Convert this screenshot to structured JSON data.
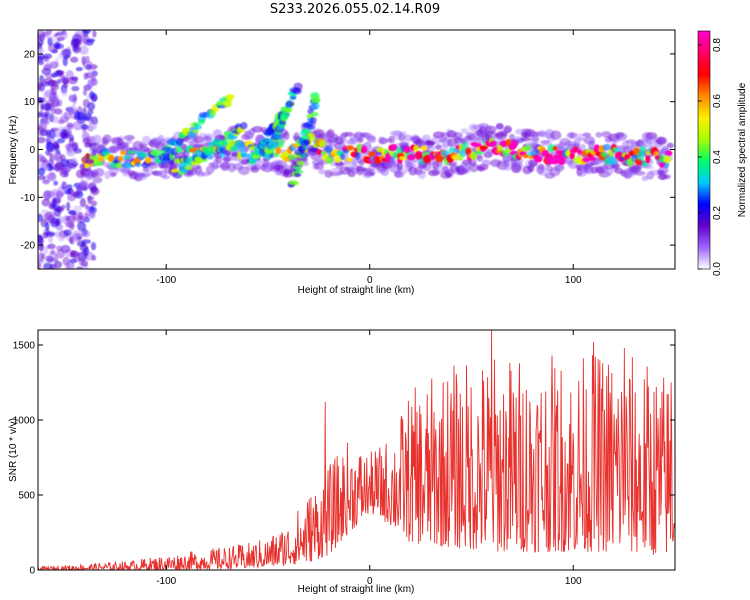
{
  "page": {
    "title": "S233.2026.055.02.14.R09"
  },
  "colors": {
    "snr_line": "#e8302c",
    "frame": "#000000"
  },
  "chart_data": [
    {
      "type": "heatmap",
      "xlabel": "Height of straight line (km)",
      "ylabel": "Frequency (Hz)",
      "xlim": [
        -163,
        150
      ],
      "ylim": [
        -25,
        25
      ],
      "xticks": [
        -100,
        0,
        100
      ],
      "yticks": [
        -20,
        -10,
        0,
        10,
        20
      ],
      "grid": false,
      "colorbar": {
        "label": "Normalized spectral amplitude",
        "range": [
          0,
          0.85
        ],
        "ticks": [
          0.0,
          0.2,
          0.4,
          0.6,
          0.8
        ],
        "colormap": [
          "#ffffff",
          "#9966ff",
          "#6600cc",
          "#0000ff",
          "#00ccff",
          "#00ff66",
          "#aaff00",
          "#ffee00",
          "#ff8800",
          "#ff0000",
          "#ff0066",
          "#ff00cc"
        ]
      },
      "features": [
        {
          "name": "ridge",
          "x": [
            -140,
            -120,
            -100,
            -85,
            -70,
            -55,
            -45,
            -38,
            -30,
            -20,
            0,
            20,
            40,
            60,
            80,
            100,
            120,
            148
          ],
          "y": [
            -2,
            -2,
            -1.5,
            -1,
            0,
            0,
            0,
            -1,
            2,
            -1,
            -1,
            -1,
            -1,
            1,
            -1,
            -1,
            -1,
            -2
          ],
          "amplitude": 0.5
        },
        {
          "name": "streak",
          "x": [
            -102,
            -68
          ],
          "y": [
            -1,
            11
          ],
          "amplitude": 0.35
        },
        {
          "name": "streak",
          "x": [
            -95,
            -62
          ],
          "y": [
            -5,
            5
          ],
          "amplitude": 0.35
        },
        {
          "name": "streak",
          "x": [
            -58,
            -42
          ],
          "y": [
            -3,
            8
          ],
          "amplitude": 0.3
        },
        {
          "name": "streak",
          "x": [
            -50,
            -36
          ],
          "y": [
            -1,
            13
          ],
          "amplitude": 0.3
        },
        {
          "name": "streak",
          "x": [
            -38,
            -26
          ],
          "y": [
            -8,
            11
          ],
          "amplitude": 0.3
        },
        {
          "name": "noise_column",
          "x": [
            -163,
            -135
          ],
          "y": [
            -25,
            25
          ],
          "amplitude": 0.15
        }
      ]
    },
    {
      "type": "line",
      "xlabel": "Height of straight line (km)",
      "ylabel": "SNR (10 * v/v)",
      "xlim": [
        -163,
        150
      ],
      "ylim": [
        0,
        1600
      ],
      "xticks": [
        -100,
        0,
        100
      ],
      "yticks": [
        0,
        500,
        1000,
        1500
      ],
      "grid": false,
      "envelope": {
        "x": [
          -163,
          -140,
          -120,
          -100,
          -80,
          -60,
          -50,
          -40,
          -30,
          -20,
          -10,
          0,
          10,
          20,
          40,
          60,
          80,
          100,
          120,
          140,
          150
        ],
        "low": [
          0,
          0,
          0,
          0,
          5,
          10,
          20,
          30,
          50,
          100,
          250,
          380,
          300,
          180,
          150,
          120,
          120,
          120,
          120,
          100,
          100
        ],
        "high": [
          20,
          40,
          60,
          100,
          140,
          180,
          220,
          320,
          520,
          700,
          880,
          780,
          900,
          1200,
          1380,
          1450,
          1450,
          1430,
          1500,
          1380,
          1300
        ]
      },
      "peaks": [
        {
          "x": -22,
          "y": 1120
        },
        {
          "x": 60,
          "y": 1600
        },
        {
          "x": 110,
          "y": 1520
        },
        {
          "x": 125,
          "y": 1480
        },
        {
          "x": 148,
          "y": 1250
        }
      ]
    }
  ]
}
